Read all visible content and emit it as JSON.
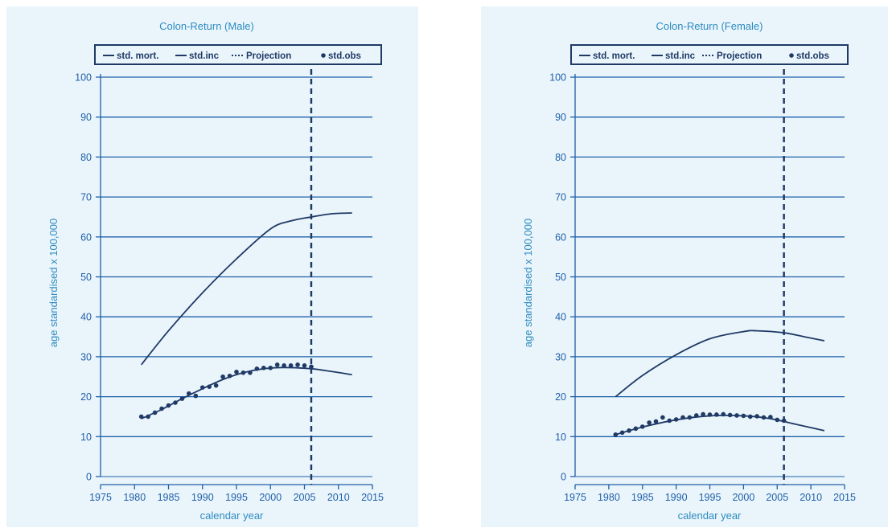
{
  "charts": [
    {
      "title": "Colon-Return (Male)",
      "xlabel": "calendar year",
      "ylabel": "age standardised x 100,000",
      "legend": [
        "std. mort.",
        "std.inc",
        "Projection",
        "std.obs"
      ]
    },
    {
      "title": "Colon-Return (Female)",
      "xlabel": "calendar year",
      "ylabel": "age standardised x 100,000",
      "legend": [
        "std. mort.",
        "std.inc",
        "Projection",
        "std.obs"
      ]
    }
  ],
  "colors": {
    "line": "#1f3a66",
    "grid": "#1f5fa8",
    "text": "#2e8bc0",
    "background": "#eaf5fb"
  },
  "chart_data": [
    {
      "type": "line",
      "title": "Colon-Return (Male)",
      "xlabel": "calendar year",
      "ylabel": "age standardised x 100,000",
      "xlim": [
        1975,
        2015
      ],
      "ylim": [
        0,
        100
      ],
      "xticks": [
        1975,
        1980,
        1985,
        1990,
        1995,
        2000,
        2005,
        2010,
        2015
      ],
      "yticks": [
        0,
        10,
        20,
        30,
        40,
        50,
        60,
        70,
        80,
        90,
        100
      ],
      "legend_position": "top",
      "projection_year": 2006,
      "series": [
        {
          "name": "std. mort.",
          "x": [
            1981,
            1985,
            1990,
            1995,
            2000,
            2003,
            2006,
            2009,
            2012
          ],
          "y": [
            28,
            36.5,
            46,
            54.5,
            62,
            64,
            65,
            65.8,
            66
          ]
        },
        {
          "name": "std.inc",
          "x": [
            1981,
            1984,
            1987,
            1990,
            1993,
            1996,
            1999,
            2002,
            2006,
            2009,
            2012
          ],
          "y": [
            14.5,
            16.8,
            19.5,
            22,
            24.3,
            26,
            27,
            27.3,
            27,
            26.3,
            25.5
          ]
        },
        {
          "name": "std.obs",
          "x": [
            1981,
            1982,
            1983,
            1984,
            1985,
            1986,
            1987,
            1988,
            1989,
            1990,
            1991,
            1992,
            1993,
            1994,
            1995,
            1996,
            1997,
            1998,
            1999,
            2000,
            2001,
            2002,
            2003,
            2004,
            2005,
            2006
          ],
          "y": [
            15,
            15,
            16,
            17,
            17.8,
            18.5,
            19.5,
            20.8,
            20.2,
            22.3,
            22.5,
            22.8,
            25,
            25.2,
            26.2,
            26,
            26,
            27,
            27.2,
            27.2,
            28,
            27.8,
            27.8,
            28,
            27.8,
            27.5
          ]
        }
      ]
    },
    {
      "type": "line",
      "title": "Colon-Return (Female)",
      "xlabel": "calendar year",
      "ylabel": "age standardised x 100,000",
      "xlim": [
        1975,
        2015
      ],
      "ylim": [
        0,
        100
      ],
      "xticks": [
        1975,
        1980,
        1985,
        1990,
        1995,
        2000,
        2005,
        2010,
        2015
      ],
      "yticks": [
        0,
        10,
        20,
        30,
        40,
        50,
        60,
        70,
        80,
        90,
        100
      ],
      "legend_position": "top",
      "projection_year": 2006,
      "series": [
        {
          "name": "std. mort.",
          "x": [
            1981,
            1985,
            1990,
            1995,
            2000,
            2002,
            2006,
            2009,
            2012
          ],
          "y": [
            20,
            25.3,
            30.5,
            34.5,
            36.3,
            36.5,
            36,
            35,
            34
          ]
        },
        {
          "name": "std.inc",
          "x": [
            1981,
            1985,
            1990,
            1995,
            2000,
            2004,
            2008,
            2012
          ],
          "y": [
            10.5,
            12.4,
            14.2,
            15.2,
            15.2,
            14.5,
            13,
            11.5
          ]
        },
        {
          "name": "std.obs",
          "x": [
            1981,
            1982,
            1983,
            1984,
            1985,
            1986,
            1987,
            1988,
            1989,
            1990,
            1991,
            1992,
            1993,
            1994,
            1995,
            1996,
            1997,
            1998,
            1999,
            2000,
            2001,
            2002,
            2003,
            2004,
            2005,
            2006
          ],
          "y": [
            10.5,
            11,
            11.5,
            12,
            12.5,
            13.5,
            13.8,
            14.8,
            14,
            14.3,
            14.8,
            14.8,
            15.3,
            15.6,
            15.5,
            15.5,
            15.6,
            15.4,
            15.3,
            15.2,
            15,
            15.1,
            14.8,
            14.9,
            14.2,
            14
          ]
        }
      ]
    }
  ]
}
